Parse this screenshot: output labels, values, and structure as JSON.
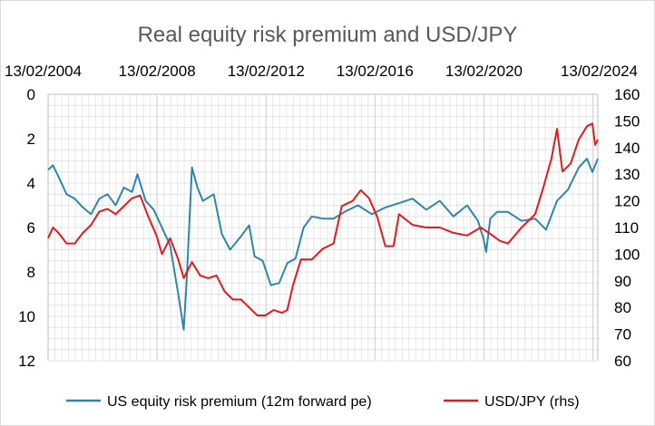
{
  "chart_data": {
    "type": "line",
    "title": "Real equity risk premium and USD/JPY",
    "x_tick_labels": [
      "13/02/2004",
      "13/02/2008",
      "13/02/2012",
      "13/02/2016",
      "13/02/2020",
      "13/02/2024"
    ],
    "x_tick_years": [
      2004.12,
      2008.12,
      2012.12,
      2016.12,
      2020.12,
      2024.12
    ],
    "xlim": [
      2004.12,
      2024.3
    ],
    "y_left": {
      "ylim": [
        0,
        12
      ],
      "inverted": true,
      "ticks": [
        "0",
        "2",
        "4",
        "6",
        "8",
        "10",
        "12"
      ]
    },
    "y_right": {
      "ylim": [
        60,
        160
      ],
      "ticks": [
        "60",
        "70",
        "80",
        "90",
        "100",
        "110",
        "120",
        "130",
        "140",
        "150",
        "160"
      ]
    },
    "grid": true,
    "legend_position": "bottom",
    "series": [
      {
        "name": "US equity risk premium (12m forward pe)",
        "axis": "left",
        "color": "#2E86AB",
        "x": [
          2004.12,
          2004.3,
          2004.5,
          2004.8,
          2005.1,
          2005.4,
          2005.7,
          2006.0,
          2006.3,
          2006.6,
          2006.9,
          2007.2,
          2007.4,
          2007.7,
          2008.0,
          2008.3,
          2008.6,
          2008.9,
          2009.1,
          2009.2,
          2009.4,
          2009.6,
          2009.8,
          2010.2,
          2010.5,
          2010.8,
          2011.2,
          2011.5,
          2011.7,
          2012.0,
          2012.3,
          2012.6,
          2012.9,
          2013.2,
          2013.5,
          2013.8,
          2014.2,
          2014.6,
          2015.0,
          2015.5,
          2016.0,
          2016.5,
          2017.0,
          2017.5,
          2018.0,
          2018.5,
          2019.0,
          2019.5,
          2019.9,
          2020.1,
          2020.2,
          2020.35,
          2020.6,
          2021.0,
          2021.5,
          2022.0,
          2022.4,
          2022.8,
          2023.2,
          2023.6,
          2023.9,
          2024.1,
          2024.3
        ],
        "values": [
          3.4,
          3.2,
          3.7,
          4.5,
          4.7,
          5.1,
          5.4,
          4.7,
          4.5,
          5.0,
          4.2,
          4.4,
          3.6,
          4.8,
          5.2,
          6.0,
          6.8,
          9.0,
          10.6,
          8.5,
          3.3,
          4.2,
          4.8,
          4.5,
          6.3,
          7.0,
          6.4,
          5.9,
          7.3,
          7.5,
          8.6,
          8.5,
          7.6,
          7.4,
          6.0,
          5.5,
          5.6,
          5.6,
          5.3,
          5.0,
          5.4,
          5.1,
          4.9,
          4.7,
          5.2,
          4.8,
          5.5,
          5.0,
          5.7,
          6.5,
          7.1,
          5.6,
          5.3,
          5.3,
          5.7,
          5.6,
          6.1,
          4.8,
          4.3,
          3.3,
          2.9,
          3.5,
          2.9
        ]
      },
      {
        "name": "USD/JPY (rhs)",
        "axis": "right",
        "color": "#E31A1C",
        "x": [
          2004.12,
          2004.3,
          2004.5,
          2004.8,
          2005.1,
          2005.4,
          2005.7,
          2006.0,
          2006.3,
          2006.6,
          2006.9,
          2007.2,
          2007.5,
          2007.8,
          2008.1,
          2008.3,
          2008.6,
          2008.9,
          2009.1,
          2009.4,
          2009.7,
          2010.0,
          2010.3,
          2010.6,
          2010.9,
          2011.2,
          2011.5,
          2011.8,
          2012.1,
          2012.4,
          2012.7,
          2012.9,
          2013.1,
          2013.4,
          2013.8,
          2014.2,
          2014.6,
          2014.9,
          2015.3,
          2015.6,
          2015.9,
          2016.2,
          2016.5,
          2016.8,
          2017.0,
          2017.5,
          2018.0,
          2018.5,
          2019.0,
          2019.5,
          2020.0,
          2020.3,
          2020.7,
          2021.0,
          2021.5,
          2022.0,
          2022.3,
          2022.6,
          2022.8,
          2023.0,
          2023.3,
          2023.6,
          2023.9,
          2024.1,
          2024.2,
          2024.3
        ],
        "values": [
          106,
          110,
          108,
          104,
          104,
          108,
          111,
          116,
          117,
          115,
          118,
          121,
          122,
          114,
          107,
          100,
          106,
          98,
          91,
          97,
          92,
          91,
          92,
          86,
          83,
          83,
          80,
          77,
          77,
          79,
          78,
          79,
          88,
          98,
          98,
          102,
          104,
          118,
          120,
          124,
          121,
          114,
          103,
          103,
          115,
          111,
          110,
          110,
          108,
          107,
          110,
          108,
          105,
          104,
          110,
          115,
          125,
          136,
          147,
          131,
          134,
          143,
          148,
          149,
          141,
          143
        ]
      }
    ]
  }
}
